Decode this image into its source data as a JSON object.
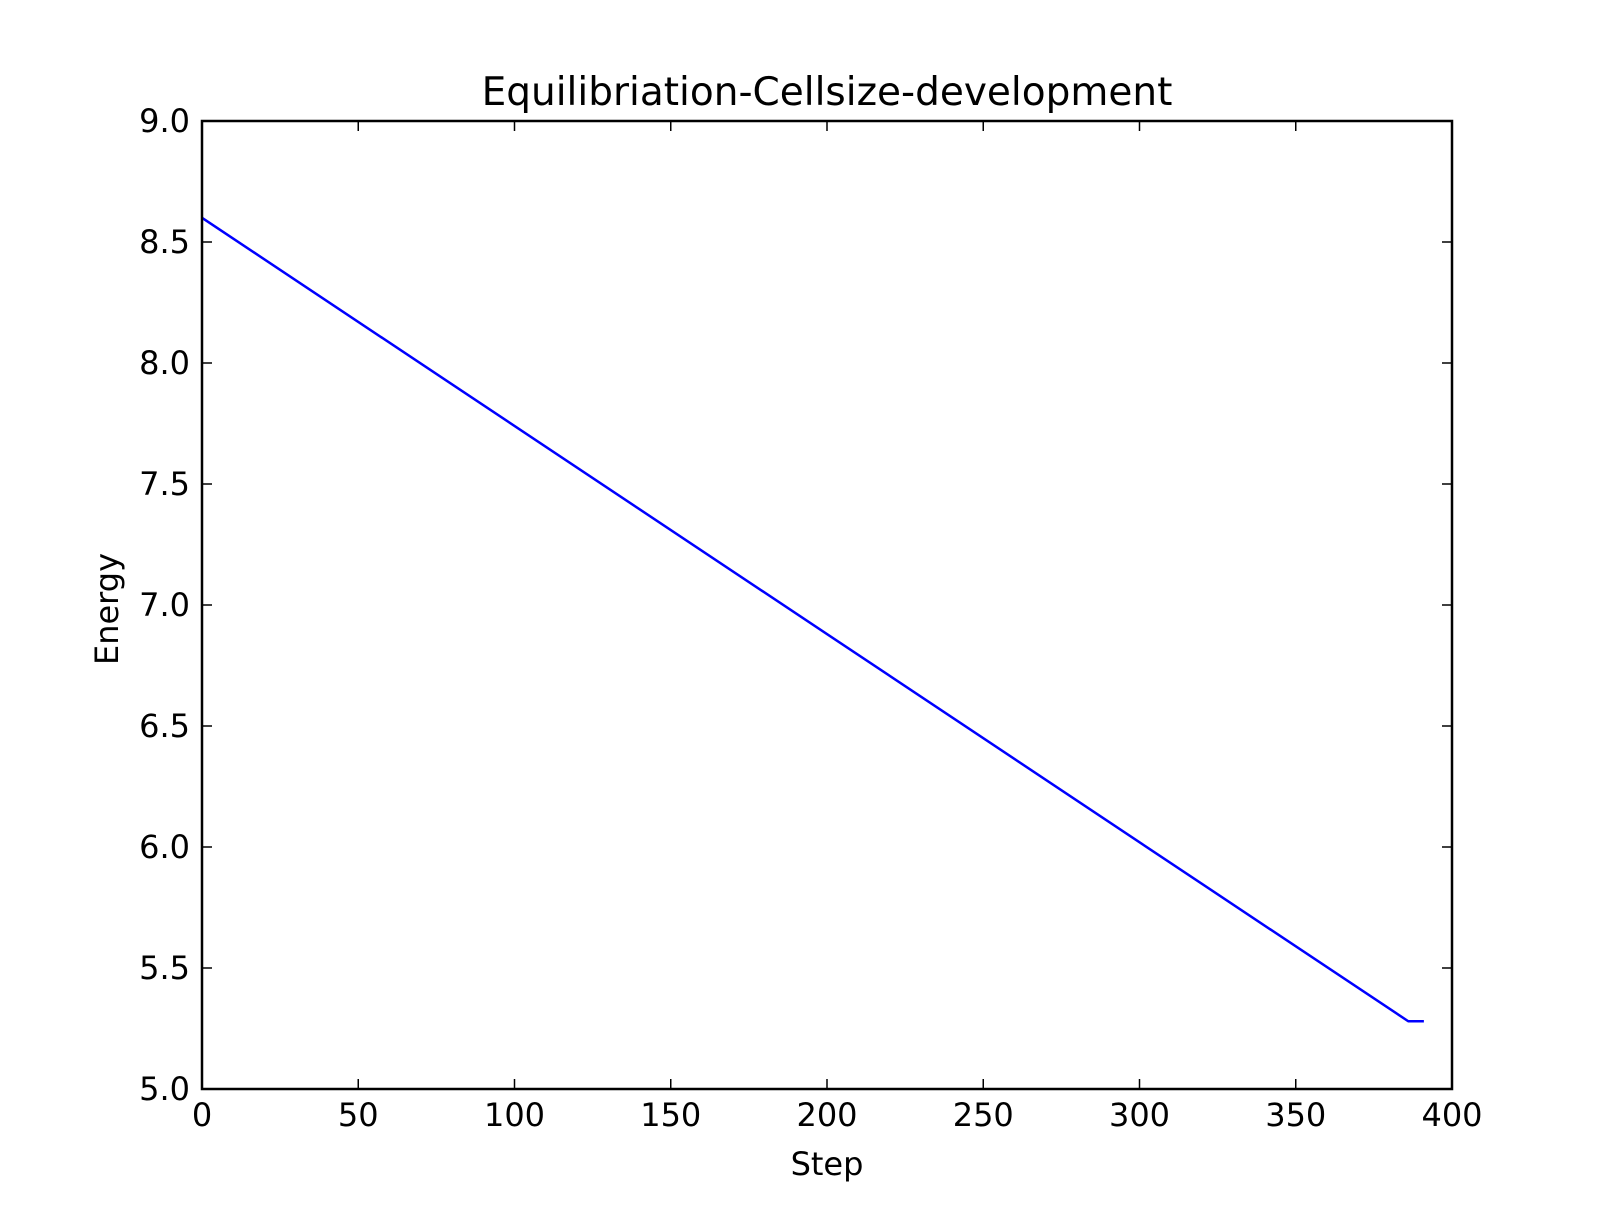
{
  "chart_data": {
    "type": "line",
    "title": "Equilibriation-Cellsize-development",
    "xlabel": "Step",
    "ylabel": "Energy",
    "xlim": [
      0,
      400
    ],
    "ylim": [
      5.0,
      9.0
    ],
    "xticks": [
      0,
      50,
      100,
      150,
      200,
      250,
      300,
      350,
      400
    ],
    "xtick_labels": [
      "0",
      "50",
      "100",
      "150",
      "200",
      "250",
      "300",
      "350",
      "400"
    ],
    "yticks": [
      5.0,
      5.5,
      6.0,
      6.5,
      7.0,
      7.5,
      8.0,
      8.5,
      9.0
    ],
    "ytick_labels": [
      "5.0",
      "5.5",
      "6.0",
      "6.5",
      "7.0",
      "7.5",
      "8.0",
      "8.5",
      "9.0"
    ],
    "grid": false,
    "legend": "none",
    "series": [
      {
        "color": "#0000ff",
        "x": [
          0,
          386,
          391
        ],
        "y": [
          8.6,
          5.28,
          5.28
        ]
      }
    ]
  }
}
